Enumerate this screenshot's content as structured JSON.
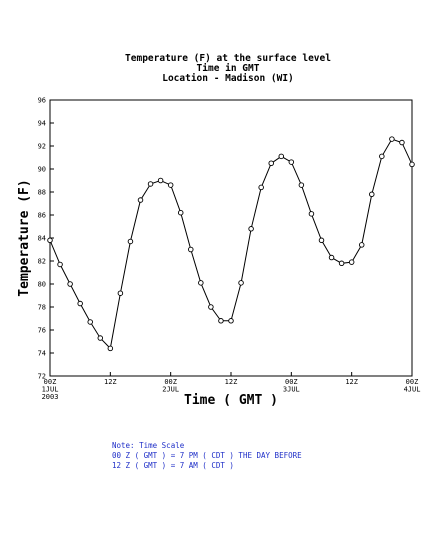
{
  "chart_data": {
    "type": "line",
    "title": [
      "Temperature (F) at the surface level",
      "Time in GMT",
      "Location - Madison (WI)"
    ],
    "xlabel": "Time ( GMT )",
    "ylabel": "Temperature (F)",
    "ylim": [
      72,
      96
    ],
    "y_ticks": [
      72,
      74,
      76,
      78,
      80,
      82,
      84,
      86,
      88,
      90,
      92,
      94,
      96
    ],
    "xlim_hours": [
      0,
      72
    ],
    "x_ticks": [
      {
        "hour": 0,
        "lines": [
          "00Z",
          "1JUL",
          "2003"
        ]
      },
      {
        "hour": 12,
        "lines": [
          "12Z"
        ]
      },
      {
        "hour": 24,
        "lines": [
          "00Z",
          "2JUL"
        ]
      },
      {
        "hour": 36,
        "lines": [
          "12Z"
        ]
      },
      {
        "hour": 48,
        "lines": [
          "00Z",
          "3JUL"
        ]
      },
      {
        "hour": 60,
        "lines": [
          "12Z"
        ]
      },
      {
        "hour": 72,
        "lines": [
          "00Z",
          "4JUL"
        ]
      }
    ],
    "grid": false,
    "legend": "none",
    "series": [
      {
        "hours": [
          0,
          2,
          4,
          6,
          8,
          10,
          12,
          14,
          16,
          18,
          20,
          22,
          24,
          26,
          28,
          30,
          32,
          34,
          36,
          38,
          40,
          42,
          44,
          46,
          48,
          50,
          52,
          54,
          56,
          58,
          60,
          62,
          64,
          66,
          68,
          70,
          72
        ],
        "values": [
          83.8,
          81.7,
          80.0,
          78.3,
          76.7,
          75.3,
          74.4,
          79.2,
          83.7,
          87.3,
          88.7,
          89.0,
          88.6,
          86.2,
          83.0,
          80.1,
          78.0,
          76.8,
          76.8,
          80.1,
          84.8,
          88.4,
          90.5,
          91.1,
          90.6,
          88.6,
          86.1,
          83.8,
          82.3,
          81.8,
          81.9,
          83.4,
          87.8,
          91.1,
          92.6,
          92.3,
          90.4
        ]
      }
    ]
  },
  "note": {
    "lines": [
      "Note: Time Scale",
      "00 Z ( GMT ) = 7 PM ( CDT ) THE DAY BEFORE",
      "12 Z ( GMT ) = 7 AM ( CDT )"
    ]
  },
  "colors": {
    "line": "#000000",
    "marker_fill": "#ffffff",
    "note_text": "#1f2fc8"
  }
}
